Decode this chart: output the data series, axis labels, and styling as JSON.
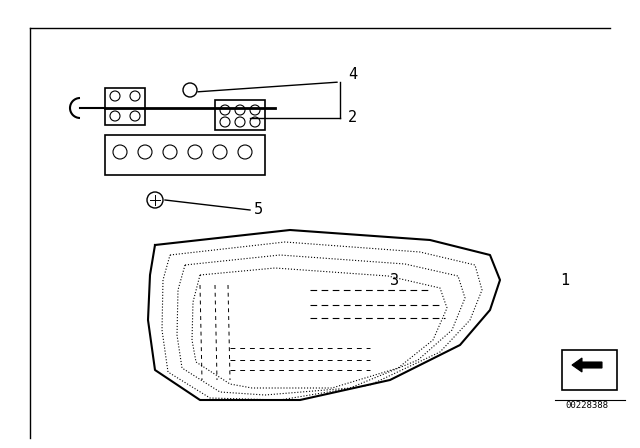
{
  "bg_color": "#ffffff",
  "border_color": "#000000",
  "label_2": "2",
  "label_3": "3",
  "label_4": "4",
  "label_5": "5",
  "label_1": "1",
  "part_number": "00228388",
  "label_font_size": 11,
  "axis_color": "#000000",
  "line_color": "#000000"
}
